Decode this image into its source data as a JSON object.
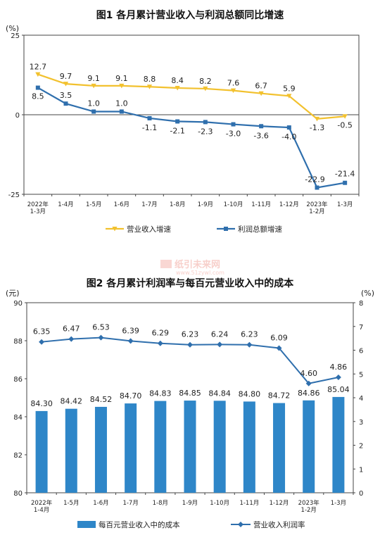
{
  "watermark": {
    "text": "纸引未来网",
    "url": "www.51zywl.com"
  },
  "chart_data": [
    {
      "type": "line",
      "title": "图1  各月累计营业收入与利润总额同比增速",
      "ylabel": "(%)",
      "ylim": [
        -25,
        25
      ],
      "yticks": [
        "25",
        "0",
        "-25"
      ],
      "categories": [
        [
          "2022年",
          "1-3月"
        ],
        [
          "1-4月"
        ],
        [
          "1-5月"
        ],
        [
          "1-6月"
        ],
        [
          "1-7月"
        ],
        [
          "1-8月"
        ],
        [
          "1-9月"
        ],
        [
          "1-10月"
        ],
        [
          "1-11月"
        ],
        [
          "1-12月"
        ],
        [
          "2023年",
          "1-2月"
        ],
        [
          "1-3月"
        ]
      ],
      "legend_position": "bottom",
      "series": [
        {
          "name": "营业收入增速",
          "color": "#f2c12e",
          "values": [
            12.7,
            9.7,
            9.1,
            9.1,
            8.8,
            8.4,
            8.2,
            7.6,
            6.7,
            5.9,
            -1.3,
            -0.5
          ],
          "labels": [
            "12.7",
            "9.7",
            "9.1",
            "9.1",
            "8.8",
            "8.4",
            "8.2",
            "7.6",
            "6.7",
            "5.9",
            "-1.3",
            "-0.5"
          ]
        },
        {
          "name": "利润总额增速",
          "color": "#2f6fad",
          "values": [
            8.5,
            3.5,
            1.0,
            1.0,
            -1.1,
            -2.1,
            -2.3,
            -3.0,
            -3.6,
            -4.0,
            -22.9,
            -21.4
          ],
          "labels": [
            "8.5",
            "3.5",
            "1.0",
            "1.0",
            "-1.1",
            "-2.1",
            "-2.3",
            "-3.0",
            "-3.6",
            "-4.0",
            "-22.9",
            "-21.4"
          ]
        }
      ]
    },
    {
      "type": "bar",
      "title": "图2  各月累计利润率与每百元营业收入中的成本",
      "ylabel_left": "(元)",
      "ylabel_right": "(%)",
      "ylim_left": [
        80,
        90
      ],
      "ylim_right": [
        0,
        8
      ],
      "yticks_left": [
        "80",
        "82",
        "84",
        "86",
        "88",
        "90"
      ],
      "yticks_right": [
        "0",
        "1",
        "2",
        "3",
        "4",
        "5",
        "6",
        "7",
        "8"
      ],
      "categories": [
        [
          "2022年",
          "1-4月"
        ],
        [
          "1-5月"
        ],
        [
          "1-6月"
        ],
        [
          "1-7月"
        ],
        [
          "1-8月"
        ],
        [
          "1-9月"
        ],
        [
          "1-10月"
        ],
        [
          "1-11月"
        ],
        [
          "1-12月"
        ],
        [
          "2023年",
          "1-2月"
        ],
        [
          "1-3月"
        ]
      ],
      "legend_position": "bottom",
      "series": [
        {
          "name": "每百元营业收入中的成本",
          "type": "bar",
          "axis": "left",
          "color": "#2e86c8",
          "values": [
            84.3,
            84.42,
            84.52,
            84.7,
            84.83,
            84.85,
            84.84,
            84.8,
            84.72,
            84.86,
            85.04
          ],
          "labels": [
            "84.30",
            "84.42",
            "84.52",
            "84.70",
            "84.83",
            "84.85",
            "84.84",
            "84.80",
            "84.72",
            "84.86",
            "85.04"
          ]
        },
        {
          "name": "营业收入利润率",
          "type": "line",
          "axis": "right",
          "color": "#2f6fad",
          "values": [
            6.35,
            6.47,
            6.53,
            6.39,
            6.29,
            6.23,
            6.24,
            6.23,
            6.09,
            4.6,
            4.86
          ],
          "labels": [
            "6.35",
            "6.47",
            "6.53",
            "6.39",
            "6.29",
            "6.23",
            "6.24",
            "6.23",
            "6.09",
            "4.60",
            "4.86"
          ]
        }
      ]
    }
  ]
}
